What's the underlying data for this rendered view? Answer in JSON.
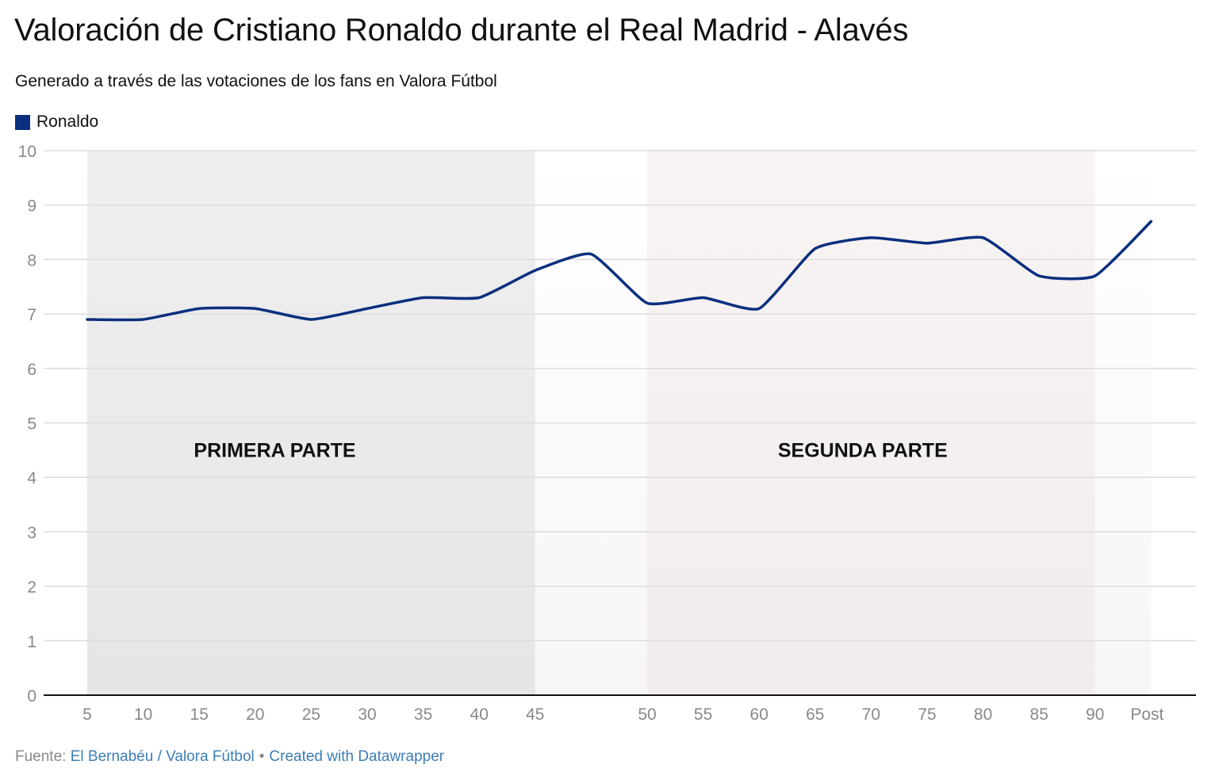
{
  "header": {
    "title": "Valoración de Cristiano Ronaldo durante el Real Madrid - Alavés",
    "subtitle": "Generado a través de las votaciones de los fans en Valora Fútbol"
  },
  "legend": {
    "items": [
      {
        "label": "Ronaldo",
        "color": "#0b2f7e"
      }
    ]
  },
  "annotations": {
    "first_half": "PRIMERA PARTE",
    "second_half": "SEGUNDA PARTE"
  },
  "footer": {
    "source_prefix": "Fuente:",
    "source_link": "El Bernabéu / Valora Fútbol",
    "separator": "•",
    "credit_link": "Created with Datawrapper"
  },
  "colors": {
    "line": "#0b2f7e",
    "grid": "#dddddd",
    "axis": "#111111",
    "tick_label": "#888888",
    "first_half_band_top": "#efefef",
    "first_half_band_bottom": "#e6e6e6",
    "break_band_top": "#ffffff",
    "break_band_bottom": "#f6f6f6",
    "second_half_band_top": "#f8f4f4",
    "second_half_band_bottom": "#f2ecec"
  },
  "chart_data": {
    "type": "line",
    "title": "Valoración de Cristiano Ronaldo durante el Real Madrid - Alavés",
    "subtitle": "Generado a través de las votaciones de los fans en Valora Fútbol",
    "xlabel": "",
    "ylabel": "",
    "ylim": [
      0,
      10
    ],
    "yticks": [
      0,
      1,
      2,
      3,
      4,
      5,
      6,
      7,
      8,
      9,
      10
    ],
    "grid": true,
    "legend_position": "top-left",
    "categories": [
      "5",
      "10",
      "15",
      "20",
      "25",
      "30",
      "35",
      "40",
      "45",
      "",
      "50",
      "55",
      "60",
      "65",
      "70",
      "75",
      "80",
      "85",
      "90",
      "Post"
    ],
    "series": [
      {
        "name": "Ronaldo",
        "color": "#0b2f7e",
        "values": [
          6.9,
          6.9,
          7.1,
          7.1,
          6.9,
          7.1,
          7.3,
          7.3,
          7.8,
          8.1,
          7.2,
          7.3,
          7.1,
          8.2,
          8.4,
          8.3,
          8.4,
          7.7,
          7.7,
          8.7
        ]
      }
    ],
    "bands": [
      {
        "label": "PRIMERA PARTE",
        "from": "5",
        "to": "45"
      },
      {
        "label": "",
        "from": "45",
        "to": "50"
      },
      {
        "label": "SEGUNDA PARTE",
        "from": "50",
        "to": "90"
      },
      {
        "label": "",
        "from": "90",
        "to": "Post"
      }
    ],
    "annotations": [
      {
        "text": "PRIMERA PARTE",
        "x_between": [
          "10",
          "25"
        ],
        "y": 4.4
      },
      {
        "text": "SEGUNDA PARTE",
        "x_between": [
          "55",
          "75"
        ],
        "y": 4.4
      }
    ]
  }
}
